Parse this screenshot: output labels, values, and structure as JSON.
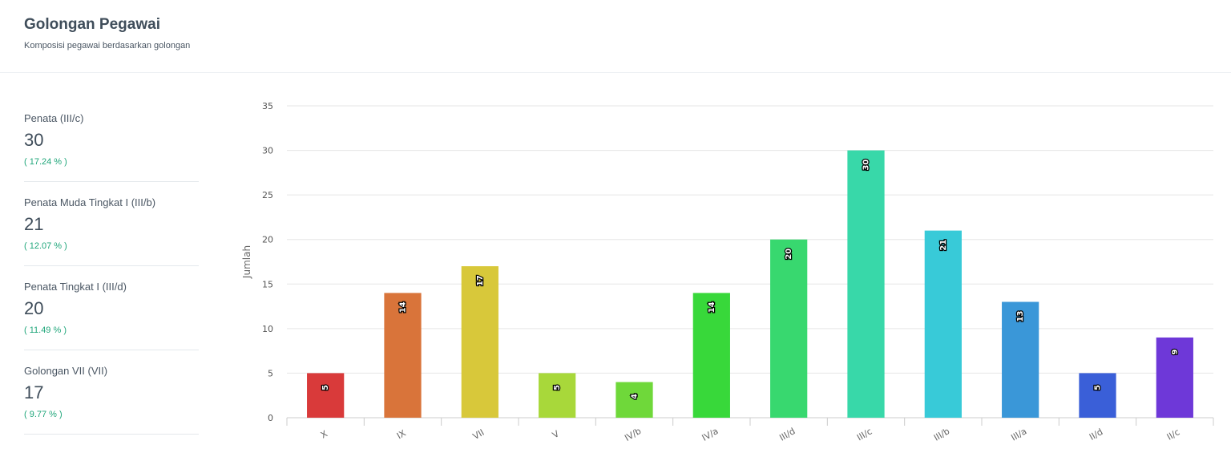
{
  "header": {
    "title": "Golongan Pegawai",
    "subtitle": "Komposisi pegawai berdasarkan golongan"
  },
  "stats": [
    {
      "label": "Penata (III/c)",
      "value": "30",
      "percent": "( 17.24 % )"
    },
    {
      "label": "Penata Muda Tingkat I (III/b)",
      "value": "21",
      "percent": "( 12.07 % )"
    },
    {
      "label": "Penata Tingkat I (III/d)",
      "value": "20",
      "percent": "( 11.49 % )"
    },
    {
      "label": "Golongan VII (VII)",
      "value": "17",
      "percent": "( 9.77 % )"
    }
  ],
  "chart_data": {
    "type": "bar",
    "ylabel": "Jumlah",
    "ylim": [
      0,
      35
    ],
    "yticks": [
      0,
      5,
      10,
      15,
      20,
      25,
      30,
      35
    ],
    "grid": true,
    "categories": [
      "X",
      "IX",
      "VII",
      "V",
      "IV/b",
      "IV/a",
      "III/d",
      "III/c",
      "III/b",
      "III/a",
      "II/d",
      "II/c"
    ],
    "values": [
      5,
      14,
      17,
      5,
      4,
      14,
      20,
      30,
      21,
      13,
      5,
      9
    ],
    "colors": [
      "#d93a3a",
      "#d9743a",
      "#d8c83a",
      "#a8d83a",
      "#6fd83a",
      "#38d83a",
      "#38d86f",
      "#38d8a9",
      "#38cad8",
      "#3a97d8",
      "#3a5fd8",
      "#6e38d8"
    ]
  }
}
